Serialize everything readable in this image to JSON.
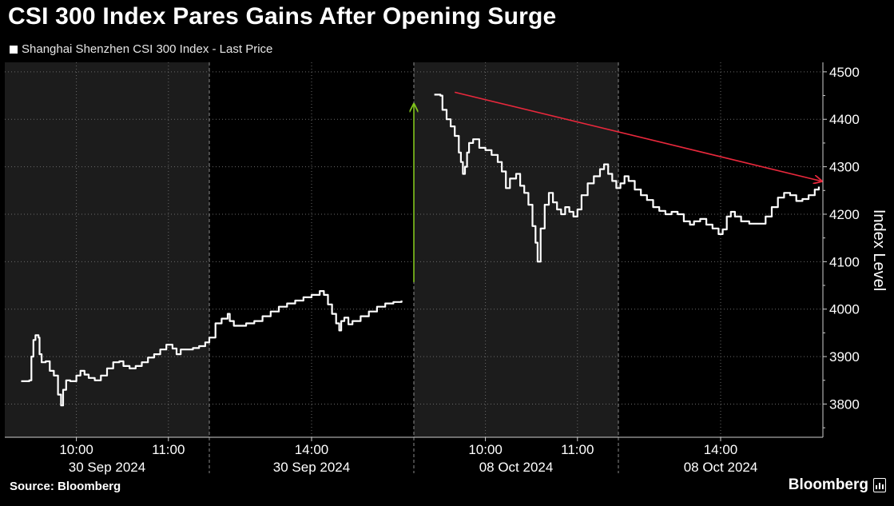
{
  "title": "CSI 300 Index Pares Gains After Opening Surge",
  "legend": {
    "label": "Shanghai Shenzhen CSI 300 Index - Last Price",
    "color": "#ffffff"
  },
  "footer": {
    "source": "Source: Bloomberg",
    "brand": "Bloomberg"
  },
  "colors": {
    "background": "#000000",
    "shaded_band": "#1c1c1c",
    "line": "#ffffff",
    "up_arrow": "#80c41c",
    "trend_arrow": "#e8283c",
    "grid": "#6a6a6a"
  },
  "chart_data": {
    "type": "line",
    "ylabel": "Index Level",
    "y_axis_position": "right",
    "ylim": [
      3730,
      4520
    ],
    "yticks": [
      3800,
      3900,
      4000,
      4100,
      4200,
      4300,
      4400,
      4500
    ],
    "grid": true,
    "sessions": [
      {
        "id": "s1",
        "time_label": "",
        "date_label": "",
        "shaded": true
      },
      {
        "id": "s2",
        "time_label": "14:00",
        "date_label": "30 Sep 2024",
        "shaded": false
      },
      {
        "id": "s3",
        "time_label": "",
        "date_label": "",
        "shaded": true
      },
      {
        "id": "s4",
        "time_label": "14:00",
        "date_label": "08 Oct 2024",
        "shaded": false
      }
    ],
    "x_tick_labels": [
      {
        "t": 0.35,
        "time": "10:00"
      },
      {
        "t": 0.8,
        "time": "11:00"
      },
      {
        "t": 2.35,
        "time": "10:00"
      },
      {
        "t": 2.8,
        "time": "11:00"
      }
    ],
    "date_labels": [
      {
        "t": 0.5,
        "date": "30 Sep 2024"
      },
      {
        "t": 1.5,
        "date": "30 Sep 2024"
      },
      {
        "t": 2.5,
        "date": "08 Oct 2024"
      },
      {
        "t": 3.5,
        "date": "08 Oct 2024"
      }
    ],
    "session_time_tick": [
      {
        "t": 1.5,
        "time": "14:00"
      },
      {
        "t": 3.5,
        "time": "14:00"
      }
    ],
    "series": [
      {
        "name": "Shanghai Shenzhen CSI 300 Index - Last Price",
        "segments": [
          [
            [
              0.08,
              3848
            ],
            [
              0.12,
              3850
            ],
            [
              0.13,
              3900
            ],
            [
              0.14,
              3935
            ],
            [
              0.15,
              3945
            ],
            [
              0.165,
              3940
            ],
            [
              0.17,
              3905
            ],
            [
              0.18,
              3888
            ],
            [
              0.2,
              3890
            ],
            [
              0.22,
              3870
            ],
            [
              0.24,
              3860
            ],
            [
              0.26,
              3820
            ],
            [
              0.275,
              3797
            ],
            [
              0.285,
              3830
            ],
            [
              0.3,
              3850
            ],
            [
              0.32,
              3848
            ],
            [
              0.35,
              3860
            ],
            [
              0.37,
              3870
            ],
            [
              0.39,
              3862
            ],
            [
              0.41,
              3855
            ],
            [
              0.44,
              3850
            ],
            [
              0.47,
              3860
            ],
            [
              0.5,
              3875
            ],
            [
              0.53,
              3888
            ],
            [
              0.56,
              3890
            ],
            [
              0.58,
              3880
            ],
            [
              0.61,
              3875
            ],
            [
              0.64,
              3880
            ],
            [
              0.67,
              3888
            ],
            [
              0.7,
              3898
            ],
            [
              0.73,
              3905
            ],
            [
              0.76,
              3915
            ],
            [
              0.79,
              3925
            ],
            [
              0.82,
              3917
            ],
            [
              0.84,
              3905
            ],
            [
              0.86,
              3915
            ],
            [
              0.89,
              3915
            ],
            [
              0.92,
              3918
            ],
            [
              0.95,
              3922
            ],
            [
              0.98,
              3930
            ],
            [
              1.0,
              3940
            ],
            [
              1.03,
              3970
            ],
            [
              1.06,
              3980
            ],
            [
              1.09,
              3990
            ],
            [
              1.1,
              3975
            ],
            [
              1.12,
              3965
            ],
            [
              1.15,
              3965
            ],
            [
              1.18,
              3970
            ],
            [
              1.22,
              3975
            ],
            [
              1.26,
              3985
            ],
            [
              1.3,
              3995
            ],
            [
              1.34,
              4005
            ],
            [
              1.38,
              4012
            ],
            [
              1.42,
              4018
            ],
            [
              1.46,
              4025
            ],
            [
              1.5,
              4030
            ],
            [
              1.54,
              4038
            ],
            [
              1.56,
              4030
            ],
            [
              1.58,
              4010
            ],
            [
              1.6,
              3990
            ],
            [
              1.62,
              3970
            ],
            [
              1.635,
              3955
            ],
            [
              1.645,
              3975
            ],
            [
              1.66,
              3982
            ],
            [
              1.68,
              3968
            ],
            [
              1.7,
              3975
            ],
            [
              1.74,
              3985
            ],
            [
              1.78,
              3995
            ],
            [
              1.82,
              4005
            ],
            [
              1.86,
              4012
            ],
            [
              1.9,
              4015
            ],
            [
              1.94,
              4018
            ]
          ],
          [
            [
              2.1,
              4452
            ],
            [
              2.13,
              4450
            ],
            [
              2.14,
              4420
            ],
            [
              2.16,
              4400
            ],
            [
              2.18,
              4385
            ],
            [
              2.2,
              4365
            ],
            [
              2.22,
              4330
            ],
            [
              2.23,
              4310
            ],
            [
              2.24,
              4285
            ],
            [
              2.25,
              4300
            ],
            [
              2.26,
              4330
            ],
            [
              2.27,
              4350
            ],
            [
              2.29,
              4358
            ],
            [
              2.32,
              4340
            ],
            [
              2.35,
              4335
            ],
            [
              2.38,
              4325
            ],
            [
              2.41,
              4310
            ],
            [
              2.43,
              4290
            ],
            [
              2.45,
              4255
            ],
            [
              2.47,
              4275
            ],
            [
              2.5,
              4285
            ],
            [
              2.52,
              4260
            ],
            [
              2.54,
              4245
            ],
            [
              2.56,
              4220
            ],
            [
              2.58,
              4175
            ],
            [
              2.595,
              4140
            ],
            [
              2.605,
              4100
            ],
            [
              2.62,
              4170
            ],
            [
              2.64,
              4220
            ],
            [
              2.66,
              4245
            ],
            [
              2.68,
              4225
            ],
            [
              2.7,
              4210
            ],
            [
              2.72,
              4200
            ],
            [
              2.74,
              4215
            ],
            [
              2.76,
              4205
            ],
            [
              2.78,
              4195
            ],
            [
              2.8,
              4210
            ],
            [
              2.82,
              4240
            ],
            [
              2.85,
              4265
            ],
            [
              2.88,
              4280
            ],
            [
              2.91,
              4295
            ],
            [
              2.93,
              4305
            ],
            [
              2.95,
              4285
            ],
            [
              2.97,
              4270
            ],
            [
              2.99,
              4255
            ],
            [
              3.01,
              4265
            ],
            [
              3.03,
              4280
            ],
            [
              3.05,
              4270
            ],
            [
              3.08,
              4252
            ],
            [
              3.11,
              4240
            ],
            [
              3.14,
              4230
            ],
            [
              3.17,
              4215
            ],
            [
              3.2,
              4207
            ],
            [
              3.23,
              4200
            ],
            [
              3.26,
              4205
            ],
            [
              3.29,
              4200
            ],
            [
              3.32,
              4185
            ],
            [
              3.35,
              4178
            ],
            [
              3.37,
              4185
            ],
            [
              3.4,
              4190
            ],
            [
              3.43,
              4178
            ],
            [
              3.46,
              4170
            ],
            [
              3.49,
              4158
            ],
            [
              3.51,
              4168
            ],
            [
              3.53,
              4195
            ],
            [
              3.55,
              4205
            ],
            [
              3.57,
              4195
            ],
            [
              3.6,
              4185
            ],
            [
              3.64,
              4180
            ],
            [
              3.68,
              4180
            ],
            [
              3.72,
              4195
            ],
            [
              3.75,
              4215
            ],
            [
              3.78,
              4235
            ],
            [
              3.81,
              4245
            ],
            [
              3.84,
              4240
            ],
            [
              3.87,
              4228
            ],
            [
              3.9,
              4232
            ],
            [
              3.93,
              4240
            ],
            [
              3.96,
              4252
            ],
            [
              3.98,
              4258
            ]
          ]
        ]
      }
    ],
    "annotations": [
      {
        "type": "arrow",
        "color": "#80c41c",
        "from": [
          2.0,
          4057
        ],
        "to": [
          2.0,
          4430
        ]
      },
      {
        "type": "arrow",
        "color": "#e8283c",
        "from": [
          2.2,
          4457
        ],
        "to": [
          3.99,
          4270
        ]
      }
    ]
  }
}
